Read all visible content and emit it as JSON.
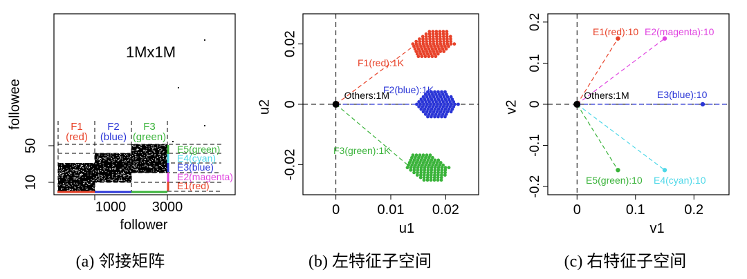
{
  "chart_data": [
    {
      "type": "scatter",
      "caption": "(a) 邻接矩阵",
      "title": "1Mx1M",
      "xlabel": "follower",
      "ylabel": "followee",
      "xticks": [
        "1000",
        "3000"
      ],
      "yticks": [
        "10",
        "50"
      ],
      "blocks": [
        {
          "label": "F1\n(red)",
          "name": "F1",
          "color": "red",
          "x_range": [
            0,
            1000
          ],
          "y_range": [
            10,
            30
          ]
        },
        {
          "label": "F2\n(blue)",
          "name": "F2",
          "color": "blue",
          "x_range": [
            1000,
            2000
          ],
          "y_range": [
            20,
            40
          ]
        },
        {
          "label": "F3\n(green)",
          "name": "F3",
          "color": "green",
          "x_range": [
            2000,
            3000
          ],
          "y_range": [
            30,
            50
          ]
        }
      ],
      "edge_labels": [
        {
          "label": "E5(green)",
          "color": "#3ab33a"
        },
        {
          "label": "E4(cyan)",
          "color": "#4fd8e8"
        },
        {
          "label": "E3(blue)",
          "color": "#2a35d6"
        },
        {
          "label": "E2(magenta)",
          "color": "#e044e0"
        },
        {
          "label": "E1(red)",
          "color": "#e8432a"
        }
      ]
    },
    {
      "type": "scatter",
      "caption": "(b) 左特征子空间",
      "xlabel": "u1",
      "ylabel": "u2",
      "xticks": [
        "0",
        "0.01",
        "0.02"
      ],
      "yticks": [
        "-0.02",
        "0",
        "0.02"
      ],
      "xlim": [
        -0.006,
        0.026
      ],
      "ylim": [
        -0.03,
        0.03
      ],
      "series": [
        {
          "name": "F1(red):1K",
          "color": "#e8432a",
          "center": [
            0.0178,
            0.02
          ]
        },
        {
          "name": "F2(blue):1K",
          "color": "#2a35d6",
          "center": [
            0.0185,
            0.0
          ]
        },
        {
          "name": "F3(green):1K",
          "color": "#3ab33a",
          "center": [
            0.0168,
            -0.021
          ]
        }
      ],
      "origin_label": "Others:1M"
    },
    {
      "type": "scatter",
      "caption": "(c) 右特征子空间",
      "xlabel": "v1",
      "ylabel": "v2",
      "xticks": [
        "0",
        "0.1",
        "0.2"
      ],
      "yticks": [
        "-0.2",
        "-0.1",
        "0",
        "0.1",
        "0.2"
      ],
      "xlim": [
        -0.05,
        0.26
      ],
      "ylim": [
        -0.22,
        0.22
      ],
      "series": [
        {
          "name": "E1(red):10",
          "color": "#e8432a",
          "point": [
            0.07,
            0.16
          ]
        },
        {
          "name": "E2(magenta):10",
          "color": "#e044e0",
          "point": [
            0.15,
            0.16
          ]
        },
        {
          "name": "E3(blue):10",
          "color": "#2a35d6",
          "point": [
            0.215,
            0.0
          ]
        },
        {
          "name": "E4(cyan):10",
          "color": "#4fd8e8",
          "point": [
            0.15,
            -0.16
          ]
        },
        {
          "name": "E5(green):10",
          "color": "#3ab33a",
          "point": [
            0.07,
            -0.16
          ]
        }
      ],
      "origin_label": "Others:1M"
    }
  ]
}
